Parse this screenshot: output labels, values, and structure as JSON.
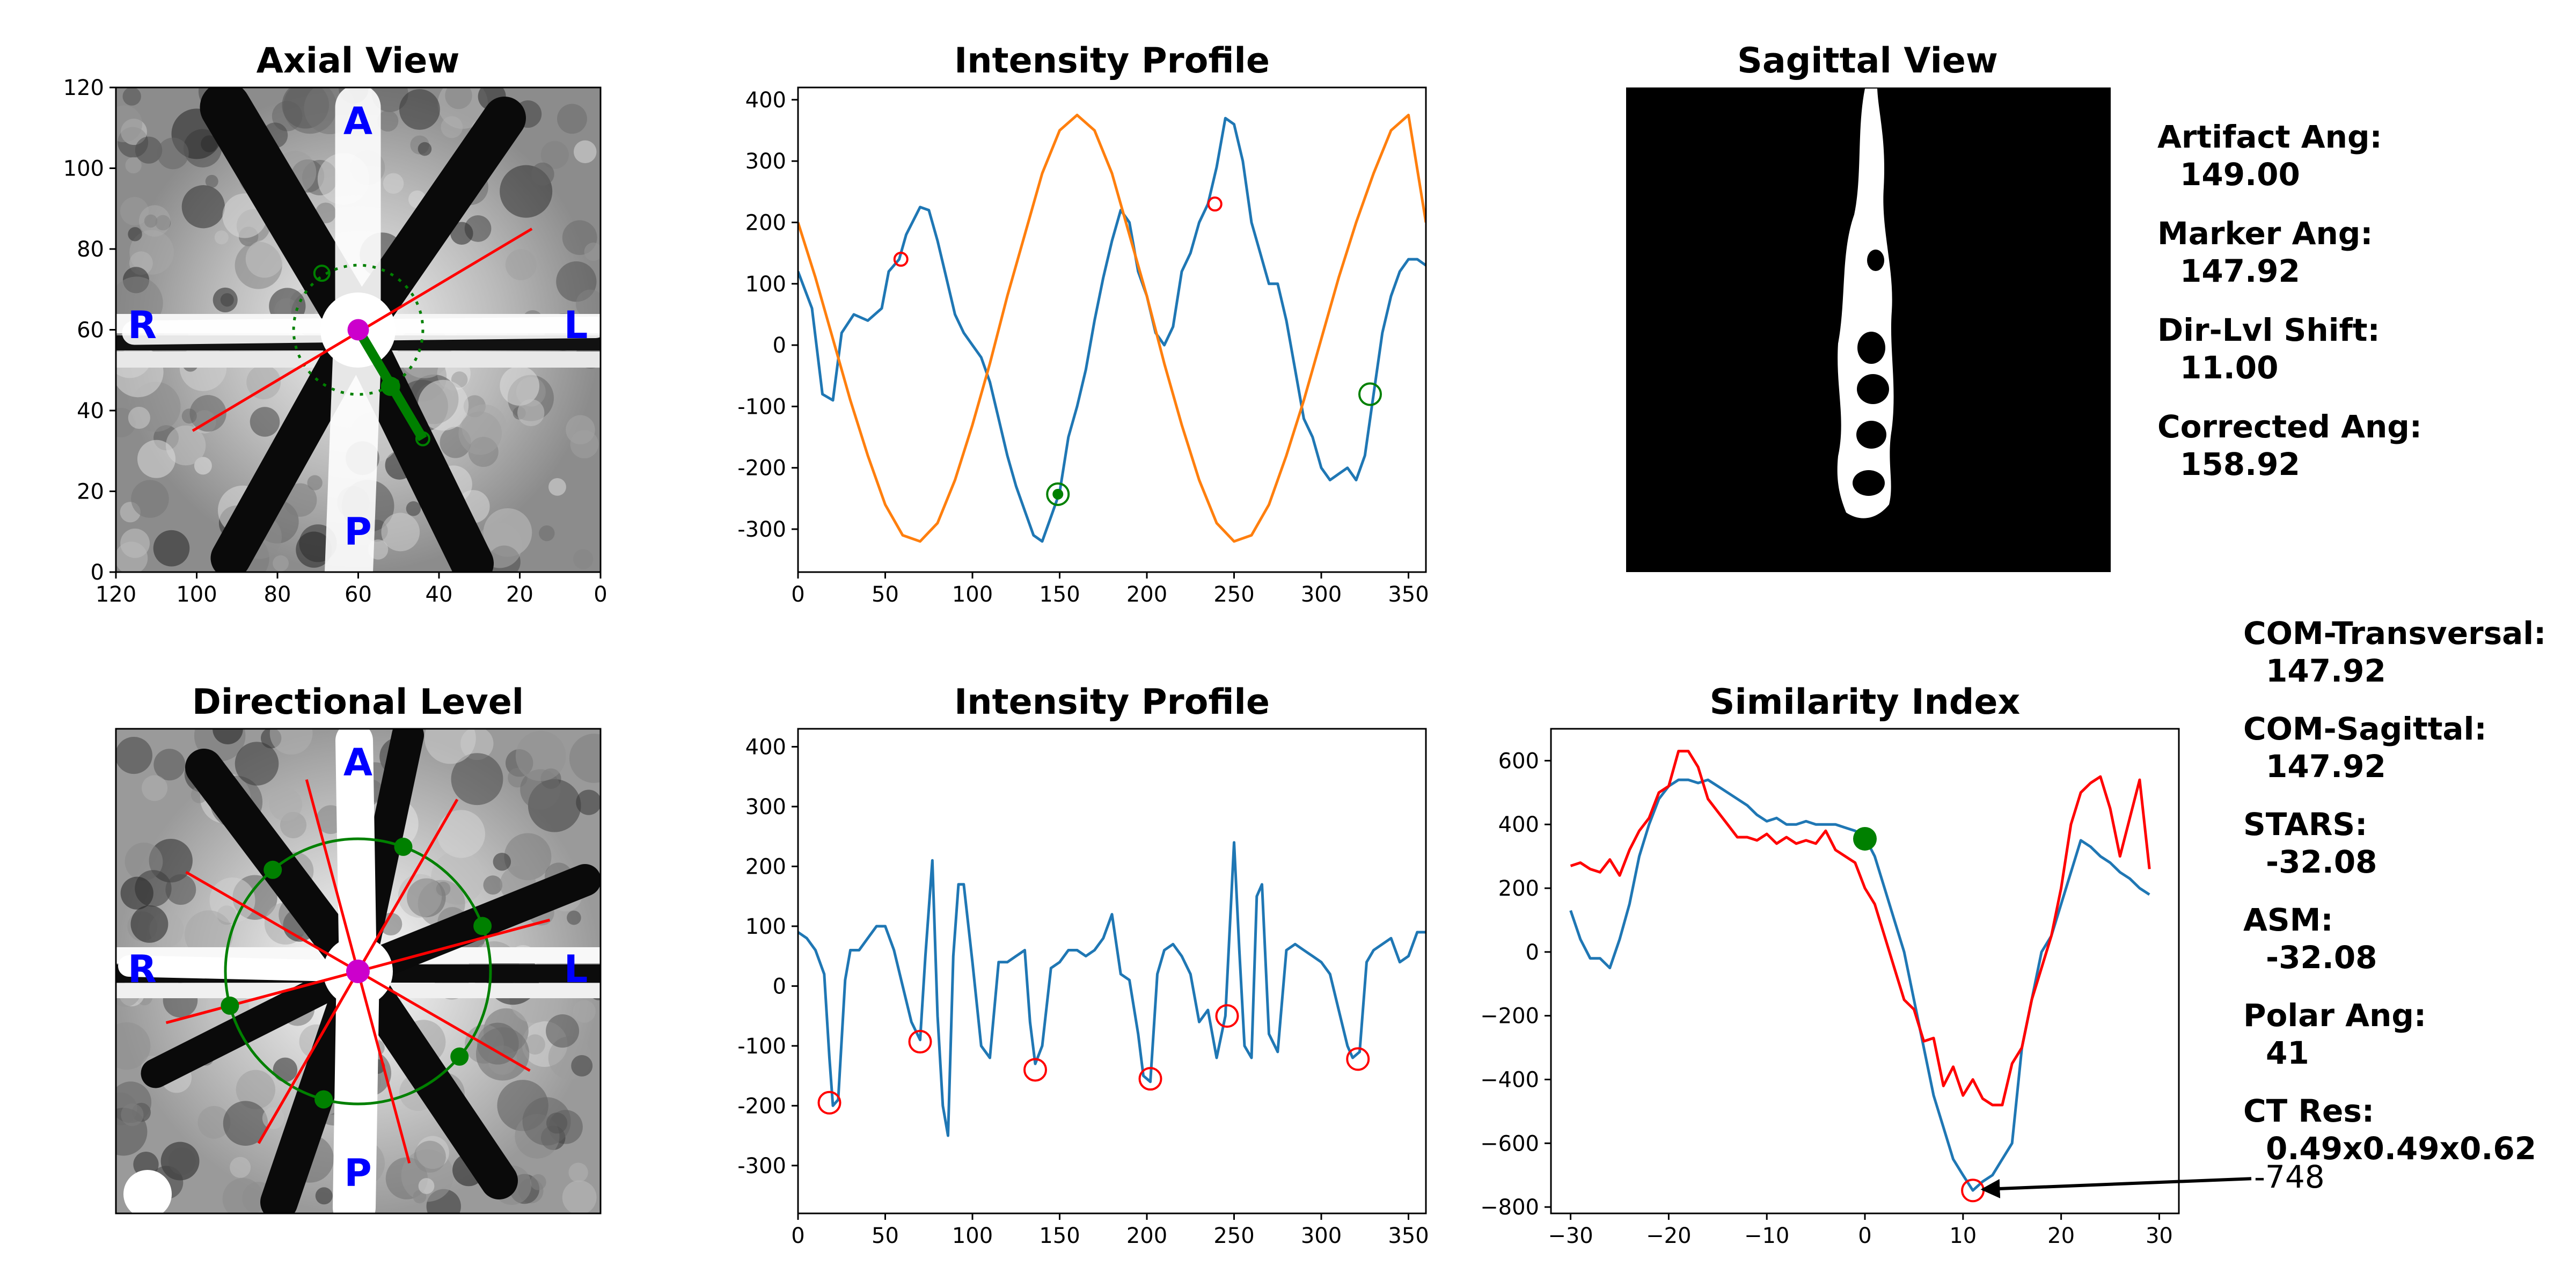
{
  "axial_view": {
    "title": "Axial View",
    "orientation": {
      "anterior": "A",
      "posterior": "P",
      "right": "R",
      "left": "L"
    },
    "x_ticks": [
      "120",
      "100",
      "80",
      "60",
      "40",
      "20",
      "0"
    ],
    "y_ticks": [
      "0",
      "20",
      "40",
      "60",
      "80",
      "100",
      "120"
    ],
    "x_range": [
      120,
      0
    ],
    "y_range": [
      0,
      120
    ],
    "center": [
      60,
      60
    ],
    "marker_circle_radius": 16,
    "artifact_line": [
      [
        101,
        35
      ],
      [
        17,
        85
      ]
    ],
    "marker_line": [
      [
        60,
        60
      ],
      [
        44,
        33
      ]
    ],
    "marker_points": [
      [
        52,
        46
      ],
      [
        69,
        74
      ]
    ],
    "colors": {
      "artifact": "#ff0000",
      "marker": "#008000",
      "center": "#cc00cc"
    }
  },
  "directional_level": {
    "title": "Directional Level",
    "orientation": {
      "anterior": "A",
      "posterior": "P",
      "right": "R",
      "left": "L"
    },
    "colors": {
      "lines": "#ff0000",
      "circle": "#008000",
      "center": "#cc00cc"
    }
  },
  "sagittal_view": {
    "title": "Sagittal View"
  },
  "chart_data": [
    {
      "id": "intensity-profile-top",
      "type": "line",
      "title": "Intensity Profile",
      "xlim": [
        0,
        360
      ],
      "ylim": [
        -370,
        420
      ],
      "x_ticks": [
        0,
        50,
        100,
        150,
        200,
        250,
        300,
        350
      ],
      "y_ticks": [
        -300,
        -200,
        -100,
        0,
        100,
        200,
        300,
        400
      ],
      "series": [
        {
          "color": "#1f77b4",
          "x": [
            0,
            8,
            14,
            20,
            25,
            32,
            40,
            48,
            52,
            58,
            62,
            70,
            75,
            80,
            85,
            90,
            95,
            100,
            105,
            110,
            115,
            120,
            125,
            130,
            135,
            140,
            145,
            150,
            155,
            160,
            165,
            170,
            175,
            180,
            185,
            190,
            195,
            200,
            205,
            210,
            215,
            220,
            225,
            230,
            235,
            240,
            245,
            250,
            255,
            260,
            265,
            270,
            275,
            280,
            285,
            290,
            295,
            300,
            305,
            310,
            315,
            320,
            325,
            330,
            335,
            340,
            345,
            350,
            355,
            360
          ],
          "y": [
            120,
            60,
            -80,
            -90,
            20,
            50,
            40,
            60,
            120,
            140,
            180,
            225,
            220,
            170,
            110,
            50,
            20,
            0,
            -20,
            -60,
            -120,
            -180,
            -230,
            -270,
            -310,
            -320,
            -280,
            -240,
            -150,
            -100,
            -40,
            40,
            110,
            170,
            220,
            200,
            120,
            80,
            20,
            0,
            30,
            120,
            150,
            200,
            230,
            290,
            370,
            360,
            300,
            200,
            150,
            100,
            100,
            40,
            -40,
            -120,
            -150,
            -200,
            -220,
            -210,
            -200,
            -220,
            -180,
            -80,
            20,
            80,
            120,
            140,
            140,
            130
          ]
        },
        {
          "color": "#ff7f0e",
          "x": [
            0,
            10,
            20,
            30,
            40,
            50,
            60,
            70,
            80,
            90,
            100,
            110,
            120,
            130,
            140,
            150,
            160,
            170,
            180,
            190,
            200,
            210,
            220,
            230,
            240,
            250,
            260,
            270,
            280,
            290,
            300,
            310,
            320,
            330,
            340,
            350,
            360
          ],
          "y": [
            200,
            110,
            10,
            -90,
            -180,
            -260,
            -310,
            -320,
            -290,
            -220,
            -130,
            -30,
            80,
            180,
            280,
            350,
            375,
            350,
            280,
            180,
            80,
            -30,
            -130,
            -220,
            -290,
            -320,
            -310,
            -260,
            -180,
            -90,
            10,
            110,
            200,
            280,
            350,
            375,
            200
          ]
        }
      ],
      "markers": [
        {
          "x": 59,
          "y": 140,
          "style": "open-red-small"
        },
        {
          "x": 239,
          "y": 230,
          "style": "open-red-small"
        },
        {
          "x": 149,
          "y": -243,
          "style": "green-dot-ring"
        },
        {
          "x": 328,
          "y": -80,
          "style": "open-green"
        }
      ]
    },
    {
      "id": "intensity-profile-bottom",
      "type": "line",
      "title": "Intensity Profile",
      "xlim": [
        0,
        360
      ],
      "ylim": [
        -380,
        430
      ],
      "x_ticks": [
        0,
        50,
        100,
        150,
        200,
        250,
        300,
        350
      ],
      "y_ticks": [
        -300,
        -200,
        -100,
        0,
        100,
        200,
        300,
        400
      ],
      "series": [
        {
          "color": "#1f77b4",
          "x": [
            0,
            5,
            10,
            15,
            18,
            20,
            23,
            27,
            30,
            35,
            40,
            45,
            50,
            55,
            60,
            65,
            70,
            73,
            77,
            80,
            83,
            86,
            89,
            92,
            95,
            100,
            105,
            110,
            115,
            120,
            125,
            130,
            133,
            136,
            140,
            145,
            150,
            155,
            160,
            165,
            170,
            175,
            180,
            185,
            190,
            195,
            198,
            202,
            206,
            210,
            215,
            220,
            225,
            230,
            235,
            240,
            245,
            250,
            253,
            256,
            260,
            263,
            266,
            270,
            275,
            280,
            285,
            290,
            295,
            300,
            305,
            310,
            315,
            318,
            322,
            326,
            330,
            335,
            340,
            345,
            350,
            355,
            360
          ],
          "y": [
            90,
            80,
            60,
            20,
            -120,
            -200,
            -190,
            10,
            60,
            60,
            80,
            100,
            100,
            60,
            0,
            -60,
            -90,
            50,
            210,
            -50,
            -200,
            -250,
            50,
            170,
            170,
            40,
            -100,
            -120,
            40,
            40,
            50,
            60,
            -60,
            -130,
            -100,
            30,
            40,
            60,
            60,
            50,
            60,
            80,
            120,
            20,
            10,
            -80,
            -150,
            -160,
            20,
            60,
            70,
            50,
            20,
            -60,
            -40,
            -120,
            -50,
            240,
            60,
            -100,
            -120,
            150,
            170,
            -80,
            -110,
            60,
            70,
            60,
            50,
            40,
            20,
            -40,
            -100,
            -120,
            -110,
            40,
            60,
            70,
            80,
            40,
            50,
            90,
            90
          ]
        }
      ],
      "markers": [
        {
          "x": 18,
          "y": -195,
          "style": "open-red"
        },
        {
          "x": 70,
          "y": -93,
          "style": "open-red"
        },
        {
          "x": 136,
          "y": -140,
          "style": "open-red"
        },
        {
          "x": 202,
          "y": -155,
          "style": "open-red"
        },
        {
          "x": 246,
          "y": -50,
          "style": "open-red"
        },
        {
          "x": 321,
          "y": -122,
          "style": "open-red"
        }
      ]
    },
    {
      "id": "similarity-index",
      "type": "line",
      "title": "Similarity Index",
      "xlim": [
        -32,
        32
      ],
      "ylim": [
        -820,
        700
      ],
      "x_ticks": [
        -30,
        -20,
        -10,
        0,
        10,
        20,
        30
      ],
      "x_tick_labels": [
        "−30",
        "−20",
        "−10",
        "0",
        "10",
        "20",
        "30"
      ],
      "y_ticks": [
        -800,
        -600,
        -400,
        -200,
        0,
        200,
        400,
        600
      ],
      "y_tick_labels": [
        "−800",
        "−600",
        "−400",
        "−200",
        "0",
        "200",
        "400",
        "600"
      ],
      "series": [
        {
          "color": "#1f77b4",
          "x": [
            -30,
            -29,
            -28,
            -27,
            -26,
            -25,
            -24,
            -23,
            -22,
            -21,
            -20,
            -19,
            -18,
            -17,
            -16,
            -15,
            -14,
            -13,
            -12,
            -11,
            -10,
            -9,
            -8,
            -7,
            -6,
            -5,
            -4,
            -3,
            -2,
            -1,
            0,
            1,
            2,
            3,
            4,
            5,
            6,
            7,
            8,
            9,
            10,
            11,
            12,
            13,
            14,
            15,
            16,
            17,
            18,
            19,
            20,
            21,
            22,
            23,
            24,
            25,
            26,
            27,
            28,
            29
          ],
          "y": [
            130,
            40,
            -20,
            -20,
            -50,
            40,
            150,
            300,
            400,
            480,
            520,
            540,
            540,
            530,
            540,
            520,
            500,
            480,
            460,
            430,
            410,
            420,
            400,
            400,
            410,
            400,
            400,
            400,
            390,
            380,
            360,
            300,
            200,
            100,
            0,
            -150,
            -300,
            -450,
            -550,
            -650,
            -700,
            -748,
            -720,
            -700,
            -650,
            -600,
            -300,
            -150,
            0,
            50,
            150,
            250,
            350,
            330,
            300,
            280,
            250,
            230,
            200,
            180
          ]
        },
        {
          "color": "#ff0000",
          "x": [
            -30,
            -29,
            -28,
            -27,
            -26,
            -25,
            -24,
            -23,
            -22,
            -21,
            -20,
            -19,
            -18,
            -17,
            -16,
            -15,
            -14,
            -13,
            -12,
            -11,
            -10,
            -9,
            -8,
            -7,
            -6,
            -5,
            -4,
            -3,
            -2,
            -1,
            0,
            1,
            2,
            3,
            4,
            5,
            6,
            7,
            8,
            9,
            10,
            11,
            12,
            13,
            14,
            15,
            16,
            17,
            18,
            19,
            20,
            21,
            22,
            23,
            24,
            25,
            26,
            27,
            28,
            29
          ],
          "y": [
            270,
            280,
            260,
            250,
            290,
            240,
            320,
            380,
            420,
            500,
            520,
            630,
            630,
            580,
            480,
            440,
            400,
            360,
            360,
            350,
            370,
            340,
            360,
            340,
            350,
            340,
            380,
            320,
            300,
            280,
            200,
            150,
            50,
            -50,
            -150,
            -180,
            -280,
            -270,
            -420,
            -360,
            -450,
            -400,
            -460,
            -480,
            -480,
            -350,
            -300,
            -150,
            -50,
            50,
            200,
            400,
            500,
            530,
            550,
            450,
            300,
            420,
            540,
            260
          ]
        }
      ],
      "markers": [
        {
          "x": 0,
          "y": 355,
          "style": "green-dot"
        },
        {
          "x": 11,
          "y": -748,
          "style": "open-red"
        }
      ],
      "annotation": {
        "text": "-748",
        "x": 11,
        "y": -748
      }
    }
  ],
  "info_top": {
    "items": [
      {
        "label": "Artifact Ang:",
        "value": "149.00"
      },
      {
        "label": "Marker Ang:",
        "value": "147.92"
      },
      {
        "label": "Dir-Lvl Shift:",
        "value": "11.00"
      },
      {
        "label": "Corrected Ang:",
        "value": "158.92"
      }
    ]
  },
  "info_bottom": {
    "items": [
      {
        "label": "COM-Transversal:",
        "value": "147.92"
      },
      {
        "label": "COM-Sagittal:",
        "value": "147.92"
      },
      {
        "label": "STARS:",
        "value": "-32.08"
      },
      {
        "label": "ASM:",
        "value": "-32.08"
      },
      {
        "label": "Polar Ang:",
        "value": "41"
      },
      {
        "label": "CT Res:",
        "value": "0.49x0.49x0.62"
      }
    ]
  }
}
